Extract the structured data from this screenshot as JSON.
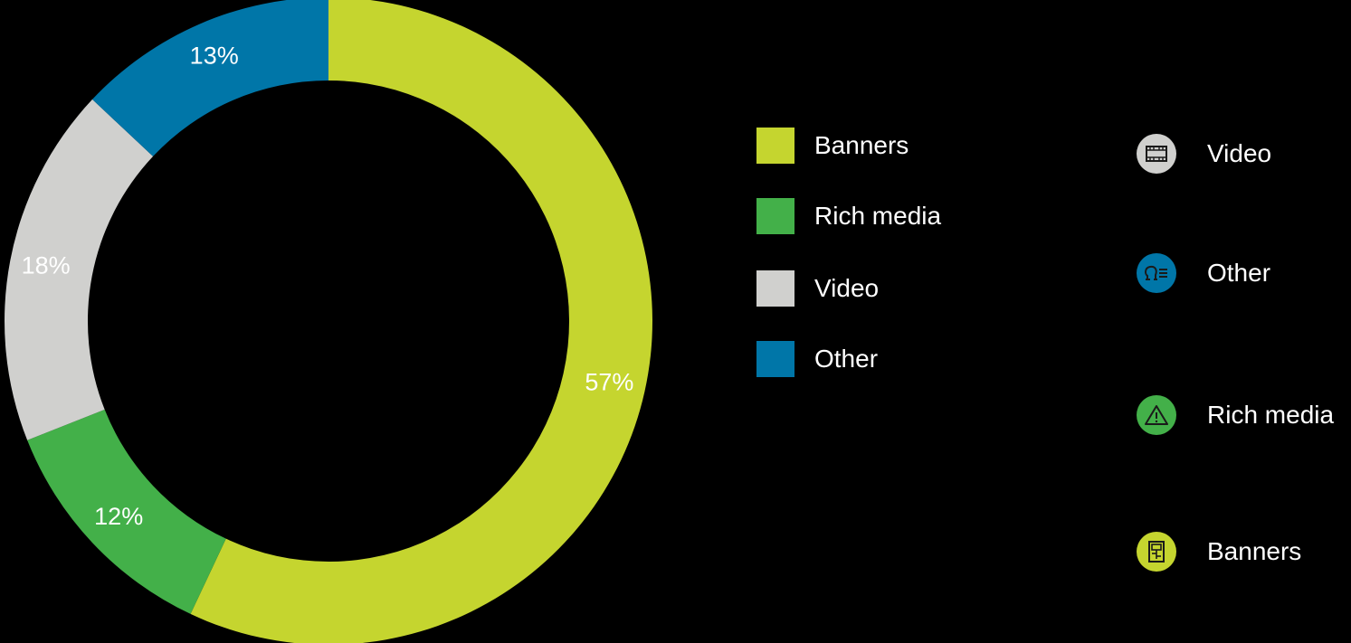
{
  "chart_data": {
    "type": "pie",
    "variant": "donut",
    "slices": [
      {
        "name": "Banners",
        "value": 57,
        "label": "57%",
        "color": "#c5d52f"
      },
      {
        "name": "Rich media",
        "value": 12,
        "label": "12%",
        "color": "#43b049"
      },
      {
        "name": "Video",
        "value": 18,
        "label": "18%",
        "color": "#d0d0ce"
      },
      {
        "name": "Other",
        "value": 13,
        "label": "13%",
        "color": "#0076a8"
      }
    ],
    "legend": [
      {
        "label": "Banners",
        "color": "#c5d52f"
      },
      {
        "label": "Rich media",
        "color": "#43b049"
      },
      {
        "label": "Video",
        "color": "#d0d0ce"
      },
      {
        "label": "Other",
        "color": "#0076a8"
      }
    ],
    "legend_placement": "right"
  },
  "icon_legend": [
    {
      "label": "Video",
      "icon": "film-icon",
      "color": "#d0d0ce"
    },
    {
      "label": "Other",
      "icon": "speech-list-icon",
      "color": "#0076a8"
    },
    {
      "label": "Rich media",
      "icon": "warning-triangle-icon",
      "color": "#43b049"
    },
    {
      "label": "Banners",
      "icon": "layout-panel-icon",
      "color": "#c5d52f"
    }
  ]
}
